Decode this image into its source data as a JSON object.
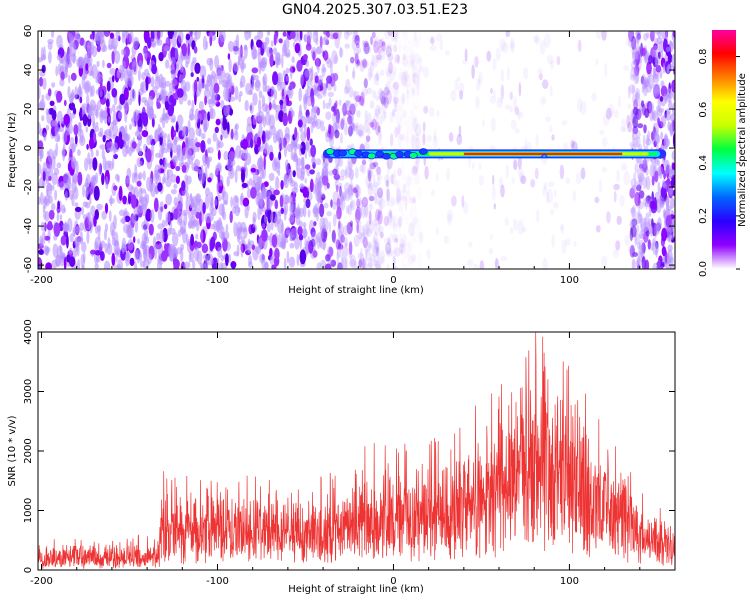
{
  "figure_title": "GN04.2025.307.03.51.E23",
  "chart_data": [
    {
      "type": "heatmap",
      "title": "GN04.2025.307.03.51.E23",
      "xlabel": "Height of straight line (km)",
      "ylabel": "Frequency (Hz)",
      "xlim": [
        -202,
        160
      ],
      "ylim": [
        -62,
        60
      ],
      "x_ticks": [
        -200,
        -100,
        0,
        100
      ],
      "y_ticks": [
        -60,
        -40,
        -20,
        0,
        20,
        40,
        60
      ],
      "colorbar": {
        "label": "Normalized spectral amplitude",
        "range": [
          0,
          0.9
        ],
        "ticks": [
          0.0,
          0.2,
          0.4,
          0.6,
          0.8
        ],
        "colormap": [
          "#ffffff",
          "#8f00ff",
          "#2a00ff",
          "#0066ff",
          "#00ffff",
          "#00ff40",
          "#c8ff00",
          "#ffff00",
          "#ff8000",
          "#ff0000",
          "#ff00a0"
        ]
      },
      "features": {
        "noise_region_x": [
          -202,
          -35
        ],
        "quiet_region_x": [
          -35,
          135
        ],
        "noise_resume_x": [
          135,
          160
        ],
        "signal_band_frequency_hz": -3,
        "signal_track_x": [
          -40,
          155
        ],
        "peak_amplitude_x": [
          40,
          130
        ]
      }
    },
    {
      "type": "line",
      "xlabel": "Height of straight line (km)",
      "ylabel": "SNR (10 * v/v)",
      "xlim": [
        -202,
        160
      ],
      "ylim": [
        0,
        4000
      ],
      "x_ticks": [
        -200,
        -100,
        0,
        100
      ],
      "y_ticks": [
        0,
        1000,
        2000,
        3000,
        4000
      ],
      "color": "#ee3333",
      "envelope": {
        "x": [
          -202,
          -180,
          -150,
          -133,
          -132,
          -110,
          -80,
          -50,
          -30,
          -20,
          0,
          20,
          40,
          60,
          75,
          85,
          95,
          110,
          125,
          140,
          150,
          160
        ],
        "mean": [
          180,
          200,
          230,
          250,
          750,
          780,
          800,
          780,
          820,
          1000,
          1000,
          1050,
          1250,
          1750,
          2400,
          2700,
          2400,
          2000,
          1500,
          900,
          600,
          550
        ],
        "upper": [
          450,
          480,
          520,
          540,
          1500,
          1450,
          1450,
          1400,
          1500,
          1950,
          1900,
          2000,
          2300,
          2900,
          3500,
          3900,
          3400,
          2800,
          2100,
          1300,
          1000,
          900
        ]
      }
    }
  ]
}
